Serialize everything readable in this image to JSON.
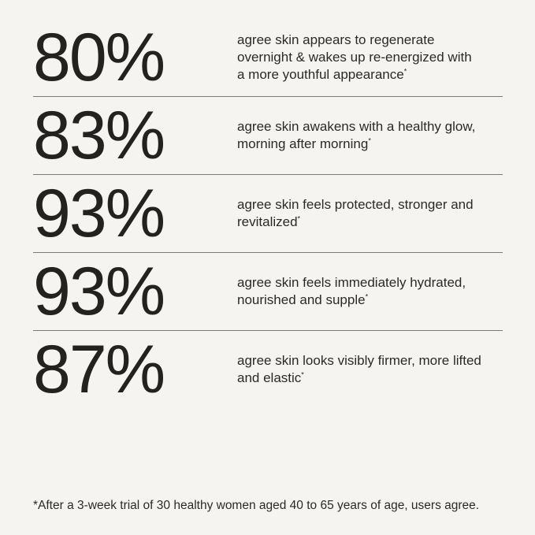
{
  "page": {
    "colors": {
      "background": "#f5f4f1",
      "text": "#2b2a28",
      "stat_number": "#232221",
      "divider": "#7b7a75"
    }
  },
  "stats": [
    {
      "value": "80%",
      "description": "agree skin appears to regenerate\novernight & wakes up re-energized with\na more youthful appearance",
      "footnote_marker": "*"
    },
    {
      "value": "83%",
      "description": "agree skin awakens with a healthy glow,\nmorning after morning",
      "footnote_marker": "*"
    },
    {
      "value": "93%",
      "description": "agree skin feels protected, stronger and\nrevitalized",
      "footnote_marker": "*"
    },
    {
      "value": "93%",
      "description": "agree skin feels immediately hydrated,\nnourished and supple",
      "footnote_marker": "*"
    },
    {
      "value": "87%",
      "description": "agree skin looks visibly firmer, more lifted\nand elastic",
      "footnote_marker": "*"
    }
  ],
  "footnote": "*After a 3-week trial of 30 healthy women aged 40 to 65 years of age, users agree."
}
